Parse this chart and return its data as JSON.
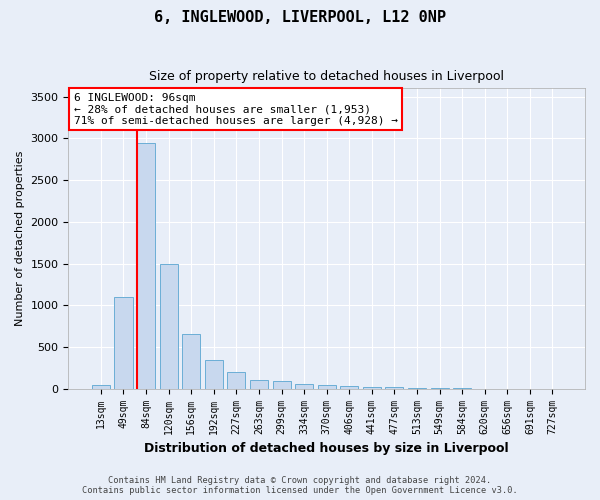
{
  "title": "6, INGLEWOOD, LIVERPOOL, L12 0NP",
  "subtitle": "Size of property relative to detached houses in Liverpool",
  "xlabel": "Distribution of detached houses by size in Liverpool",
  "ylabel": "Number of detached properties",
  "footnote": "Contains HM Land Registry data © Crown copyright and database right 2024.\nContains public sector information licensed under the Open Government Licence v3.0.",
  "bar_labels": [
    "13sqm",
    "49sqm",
    "84sqm",
    "120sqm",
    "156sqm",
    "192sqm",
    "227sqm",
    "263sqm",
    "299sqm",
    "334sqm",
    "370sqm",
    "406sqm",
    "441sqm",
    "477sqm",
    "513sqm",
    "549sqm",
    "584sqm",
    "620sqm",
    "656sqm",
    "691sqm",
    "727sqm"
  ],
  "bar_values": [
    50,
    1100,
    2950,
    1500,
    650,
    340,
    195,
    110,
    90,
    55,
    40,
    30,
    25,
    20,
    8,
    5,
    3,
    2,
    1,
    1,
    0
  ],
  "bar_color": "#c8d8ee",
  "bar_edge_color": "#6baed6",
  "ylim": [
    0,
    3600
  ],
  "yticks": [
    0,
    500,
    1000,
    1500,
    2000,
    2500,
    3000,
    3500
  ],
  "annotation_text": "6 INGLEWOOD: 96sqm\n← 28% of detached houses are smaller (1,953)\n71% of semi-detached houses are larger (4,928) →",
  "bg_color": "#e8eef8",
  "grid_color": "#ffffff",
  "red_line_index": 1.62
}
